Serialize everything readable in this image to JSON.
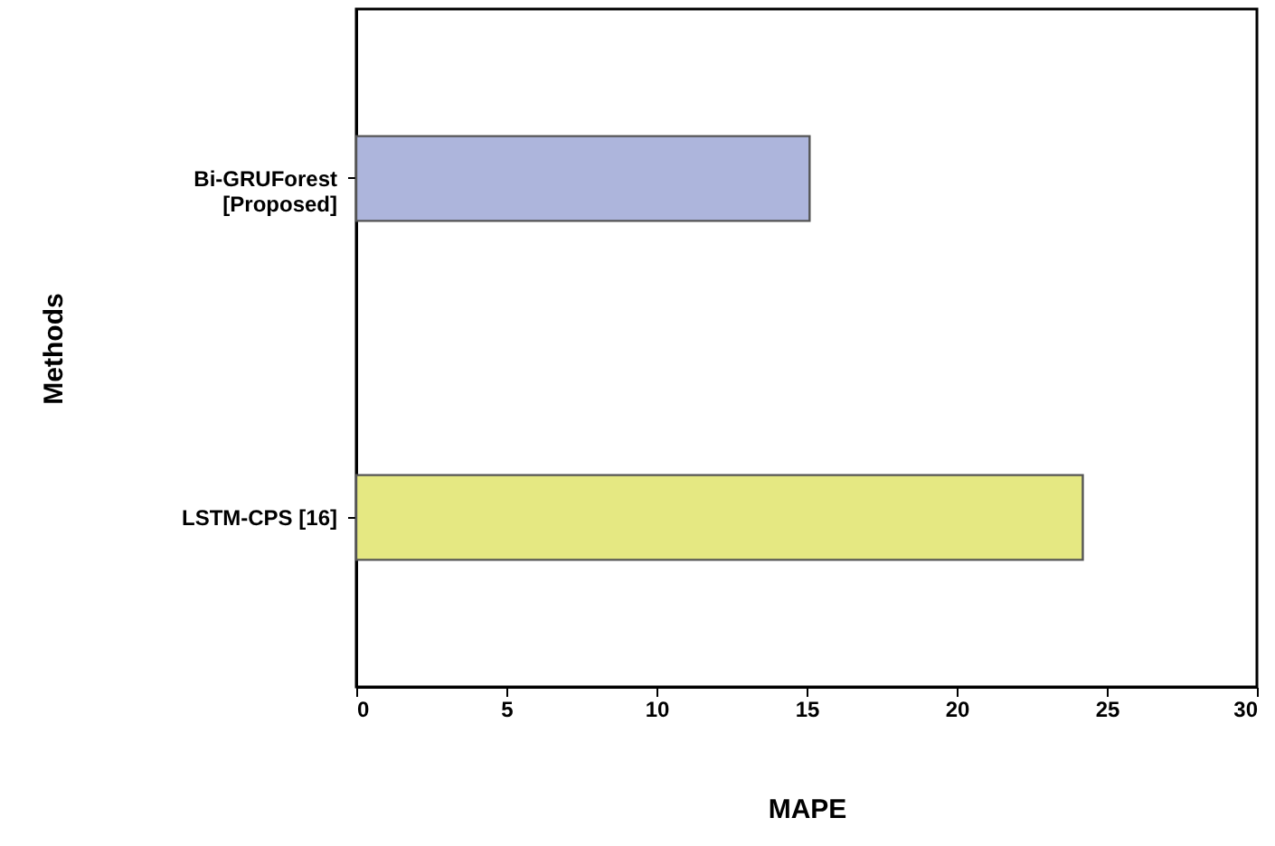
{
  "chart_data": {
    "type": "bar",
    "orientation": "horizontal",
    "xlabel": "MAPE",
    "ylabel": "Methods",
    "categories": [
      "Bi-GRUForest [Proposed]",
      "LSTM-CPS [16]"
    ],
    "values": [
      15.1,
      24.2
    ],
    "colors": [
      "#adb5dc",
      "#e5e882"
    ],
    "xlim": [
      0,
      30
    ],
    "xticks": [
      0,
      5,
      10,
      15,
      20,
      25,
      30
    ],
    "grid": false
  }
}
